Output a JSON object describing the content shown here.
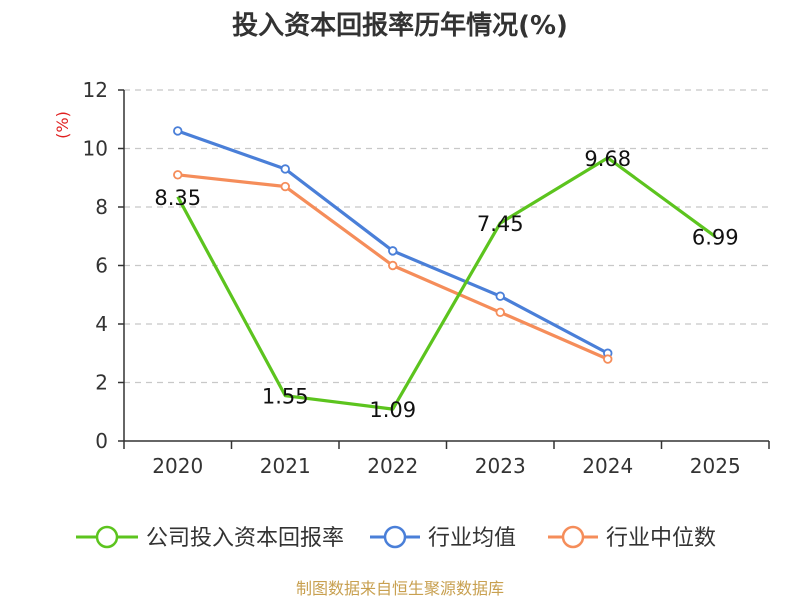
{
  "chart_data": {
    "type": "line",
    "title": "投入资本回报率历年情况(%)",
    "ylabel": "(%)",
    "xlabel": "",
    "categories": [
      "2020",
      "2021",
      "2022",
      "2023",
      "2024",
      "2025"
    ],
    "ylim": [
      0,
      12
    ],
    "yticks": [
      0,
      2,
      4,
      6,
      8,
      10,
      12
    ],
    "grid": true,
    "legend_position": "bottom",
    "series": [
      {
        "name": "公司投入资本回报率",
        "color": "#5cc41e",
        "values": [
          8.35,
          1.55,
          1.09,
          7.45,
          9.68,
          6.99
        ],
        "data_labels": [
          "8.35",
          "1.55",
          "1.09",
          "7.45",
          "9.68",
          "6.99"
        ]
      },
      {
        "name": "行业均值",
        "color": "#4a7fd8",
        "values": [
          10.6,
          9.3,
          6.5,
          4.95,
          3.0,
          null
        ]
      },
      {
        "name": "行业中位数",
        "color": "#f58d5a",
        "values": [
          9.1,
          8.7,
          6.0,
          4.4,
          2.8,
          null
        ]
      }
    ],
    "source": "制图数据来自恒生聚源数据库"
  }
}
